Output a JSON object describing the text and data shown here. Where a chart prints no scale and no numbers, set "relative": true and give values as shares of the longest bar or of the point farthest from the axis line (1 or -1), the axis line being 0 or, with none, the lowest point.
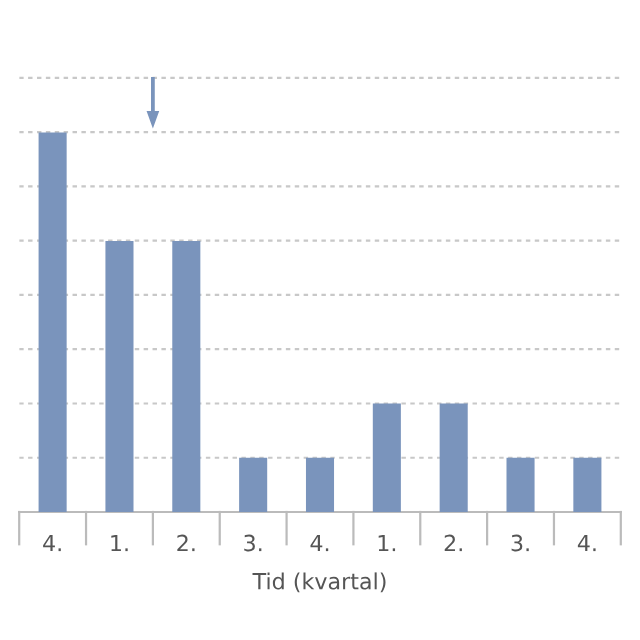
{
  "chart_data": {
    "type": "bar",
    "relative": true,
    "xlabel": "Tid (kvartal)",
    "categories": [
      "4.",
      "1.",
      "2.",
      "3.",
      "4.",
      "1.",
      "2.",
      "3.",
      "4."
    ],
    "series": [
      {
        "color": "#7a94bc",
        "values": [
          1,
          0.714,
          0.714,
          0.143,
          0.143,
          0.286,
          0.286,
          0.143,
          0.143
        ]
      }
    ],
    "grid": "y",
    "legend": false
  }
}
